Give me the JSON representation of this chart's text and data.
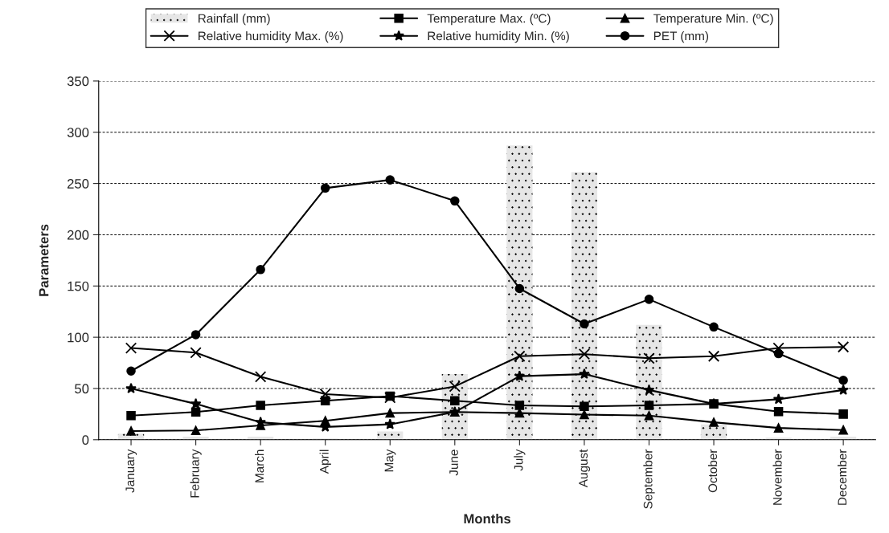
{
  "chart_data": {
    "type": "line",
    "xlabel": "Months",
    "ylabel": "Parameters",
    "categories": [
      "January",
      "February",
      "March",
      "April",
      "May",
      "June",
      "July",
      "August",
      "September",
      "October",
      "November",
      "December"
    ],
    "series": [
      {
        "name": "Rainfall (mm)",
        "type": "bar",
        "color": "#e6e6e6",
        "values": [
          6,
          3,
          3,
          1.5,
          8,
          64,
          287,
          261,
          112,
          15,
          2,
          3
        ]
      },
      {
        "name": "Temperature Max. (ºC)",
        "color": "#000000",
        "marker": "square",
        "values": [
          23.5,
          27,
          33.5,
          38,
          42.5,
          38,
          33.5,
          32.5,
          33.5,
          35,
          27.5,
          25
        ]
      },
      {
        "name": "Temperature Min. (ºC)",
        "color": "#000000",
        "marker": "triangle",
        "values": [
          8.5,
          9,
          14,
          18.5,
          26,
          27,
          26,
          24.5,
          23.5,
          17,
          11.5,
          9.5
        ]
      },
      {
        "name": "Relative humidity Max. (%)",
        "color": "#000000",
        "marker": "cross",
        "values": [
          89.5,
          85,
          61.5,
          44.5,
          41,
          52,
          81.5,
          83.5,
          79.5,
          81.5,
          89.5,
          90.5
        ]
      },
      {
        "name": "Relative humidity Min. (%)",
        "color": "#000000",
        "marker": "star",
        "values": [
          50,
          35,
          17,
          12.5,
          15,
          27,
          62,
          64,
          48.5,
          35,
          39.5,
          48.5
        ]
      },
      {
        "name": "PET (mm)",
        "color": "#000000",
        "marker": "circle",
        "values": [
          67,
          102.5,
          166,
          245.5,
          253.5,
          233,
          147.5,
          113,
          137,
          110,
          84,
          58
        ]
      }
    ],
    "ylim": [
      0,
      350
    ],
    "yticks": [
      0,
      50,
      100,
      150,
      200,
      250,
      300,
      350
    ],
    "grid": "y",
    "legend": "top"
  }
}
